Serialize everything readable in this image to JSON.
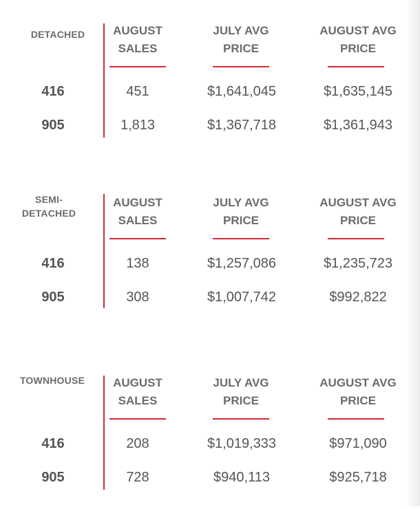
{
  "tables": [
    {
      "label": "DETACHED",
      "label_lines": [
        "DETACHED"
      ],
      "headers": [
        [
          "AUGUST",
          "SALES"
        ],
        [
          "JULY AVG",
          "PRICE"
        ],
        [
          "AUGUST AVG",
          "PRICE"
        ]
      ],
      "rows": [
        {
          "region": "416",
          "sales": "451",
          "july_avg": "$1,641,045",
          "august_avg": "$1,635,145"
        },
        {
          "region": "905",
          "sales": "1,813",
          "july_avg": "$1,367,718",
          "august_avg": "$1,361,943"
        }
      ]
    },
    {
      "label": "SEMI-DETACHED",
      "label_lines": [
        "SEMI-",
        "DETACHED"
      ],
      "headers": [
        [
          "AUGUST",
          "SALES"
        ],
        [
          "JULY AVG",
          "PRICE"
        ],
        [
          "AUGUST AVG",
          "PRICE"
        ]
      ],
      "rows": [
        {
          "region": "416",
          "sales": "138",
          "july_avg": "$1,257,086",
          "august_avg": "$1,235,723"
        },
        {
          "region": "905",
          "sales": "308",
          "july_avg": "$1,007,742",
          "august_avg": "$992,822"
        }
      ]
    },
    {
      "label": "TOWNHOUSE",
      "label_lines": [
        "TOWNHOUSE"
      ],
      "headers": [
        [
          "AUGUST",
          "SALES"
        ],
        [
          "JULY AVG",
          "PRICE"
        ],
        [
          "AUGUST AVG",
          "PRICE"
        ]
      ],
      "rows": [
        {
          "region": "416",
          "sales": "208",
          "july_avg": "$1,019,333",
          "august_avg": "$971,090"
        },
        {
          "region": "905",
          "sales": "728",
          "july_avg": "$940,113",
          "august_avg": "$925,718"
        }
      ]
    }
  ],
  "colors": {
    "accent": "#cc2a35",
    "text": "#555555",
    "header_text": "#6b6b6b"
  }
}
